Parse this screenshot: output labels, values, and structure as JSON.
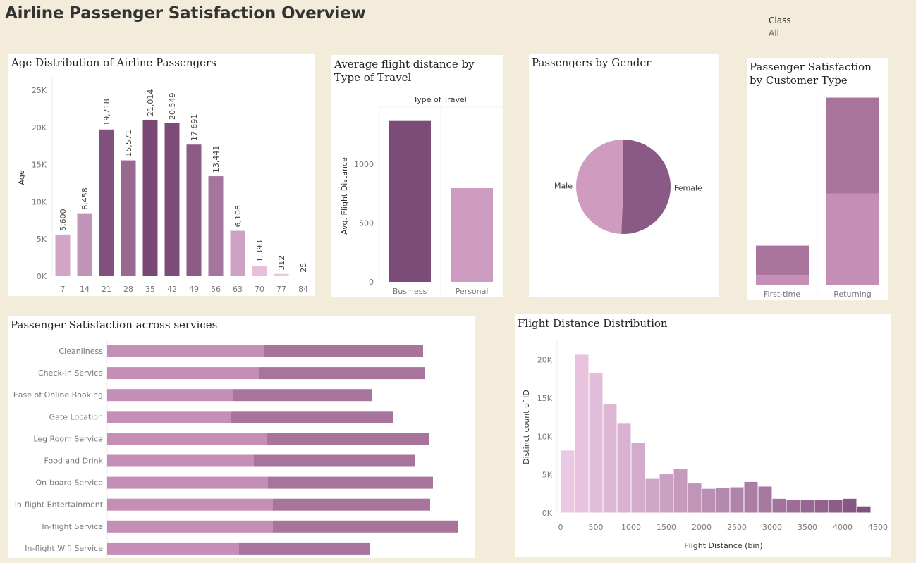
{
  "dashboard": {
    "title": "Airline Passenger Satisfaction Overview",
    "filter": {
      "label": "Class",
      "value": "All"
    }
  },
  "chart_data": [
    {
      "id": "age",
      "type": "bar",
      "title": "Age Distribution of Airline Passengers",
      "ylabel": "Age",
      "categories": [
        "7",
        "14",
        "21",
        "28",
        "35",
        "42",
        "49",
        "56",
        "63",
        "70",
        "77",
        "84"
      ],
      "values": [
        5600,
        8458,
        19718,
        15571,
        21014,
        20549,
        17691,
        13441,
        6108,
        1393,
        312,
        25
      ],
      "value_labels": [
        "5,600",
        "8,458",
        "19,718",
        "15,571",
        "21,014",
        "20,549",
        "17,691",
        "13,441",
        "6,108",
        "1,393",
        "312",
        "25"
      ],
      "y_ticks": [
        {
          "v": 0,
          "label": "0K"
        },
        {
          "v": 5000,
          "label": "5K"
        },
        {
          "v": 10000,
          "label": "10K"
        },
        {
          "v": 15000,
          "label": "15K"
        },
        {
          "v": 20000,
          "label": "20K"
        },
        {
          "v": 25000,
          "label": "25K"
        }
      ],
      "ylim": [
        0,
        25000
      ],
      "color_scale": [
        "#efc7e3",
        "#7a4875"
      ]
    },
    {
      "id": "distance",
      "type": "bar",
      "title": "Average flight distance by Type of Travel",
      "header": "Type of Travel",
      "ylabel": "Avg. Flight Distance",
      "categories": [
        "Business",
        "Personal"
      ],
      "values": [
        1368,
        797
      ],
      "colors": [
        "#7c4c78",
        "#cd9cc0"
      ],
      "y_ticks": [
        {
          "v": 0,
          "label": "0"
        },
        {
          "v": 500,
          "label": "500"
        },
        {
          "v": 1000,
          "label": "1000"
        }
      ],
      "ylim": [
        0,
        1450
      ]
    },
    {
      "id": "gender",
      "type": "pie",
      "title": "Passengers by Gender",
      "slices": [
        {
          "label": "Female",
          "value": 50.7,
          "color": "#8a5a86"
        },
        {
          "label": "Male",
          "value": 49.3,
          "color": "#cf9cc0"
        }
      ]
    },
    {
      "id": "customer",
      "type": "bar",
      "title": "Passenger Satisfaction by Customer Type",
      "categories": [
        "First-time",
        "Returning"
      ],
      "series": [
        {
          "values": [
            3000,
            28000
          ],
          "color": "#c58eb6"
        },
        {
          "values": [
            9000,
            29500
          ],
          "color": "#a8749c"
        }
      ],
      "ylim": [
        0,
        60000
      ]
    },
    {
      "id": "services",
      "type": "bar",
      "orientation": "horizontal",
      "title": "Passenger Satisfaction across services",
      "categories": [
        "Cleanliness",
        "Check-in Service",
        "Ease of Online Booking",
        "Gate Location",
        "Leg Room Service",
        "Food and Drink",
        "On-board Service",
        "In-flight Entertainment",
        "In-flight Service",
        "In-flight Wifi Service"
      ],
      "series": [
        {
          "values": [
            222,
            216,
            179,
            176,
            226,
            208,
            228,
            235,
            235,
            187
          ],
          "color": "#c58eb6"
        },
        {
          "values": [
            226,
            235,
            197,
            230,
            231,
            229,
            234,
            223,
            262,
            185
          ],
          "color": "#a8749c"
        }
      ],
      "xlim": [
        0,
        500
      ]
    },
    {
      "id": "histogram",
      "type": "bar",
      "title": "Flight Distance Distribution",
      "xlabel": "Flight Distance (bin)",
      "ylabel": "Distinct count of ID",
      "bin_start": 0,
      "bin_width": 200,
      "values": [
        8200,
        20700,
        18300,
        14300,
        11700,
        9200,
        4500,
        5100,
        5800,
        3900,
        3200,
        3300,
        3400,
        4100,
        3500,
        1900,
        1700,
        1700,
        1700,
        1700,
        1900,
        900
      ],
      "x_ticks": [
        {
          "v": 0,
          "label": "0"
        },
        {
          "v": 500,
          "label": "500"
        },
        {
          "v": 1000,
          "label": "1000"
        },
        {
          "v": 1500,
          "label": "1500"
        },
        {
          "v": 2000,
          "label": "2000"
        },
        {
          "v": 2500,
          "label": "2500"
        },
        {
          "v": 3000,
          "label": "3000"
        },
        {
          "v": 3500,
          "label": "3500"
        },
        {
          "v": 4000,
          "label": "4000"
        },
        {
          "v": 4500,
          "label": "4500"
        }
      ],
      "y_ticks": [
        {
          "v": 0,
          "label": "0K"
        },
        {
          "v": 5000,
          "label": "5K"
        },
        {
          "v": 10000,
          "label": "10K"
        },
        {
          "v": 15000,
          "label": "15K"
        },
        {
          "v": 20000,
          "label": "20K"
        }
      ],
      "xlim": [
        0,
        4500
      ],
      "ylim": [
        0,
        21800
      ],
      "color_scale": [
        "#ecc9e3",
        "#83507f"
      ]
    }
  ]
}
